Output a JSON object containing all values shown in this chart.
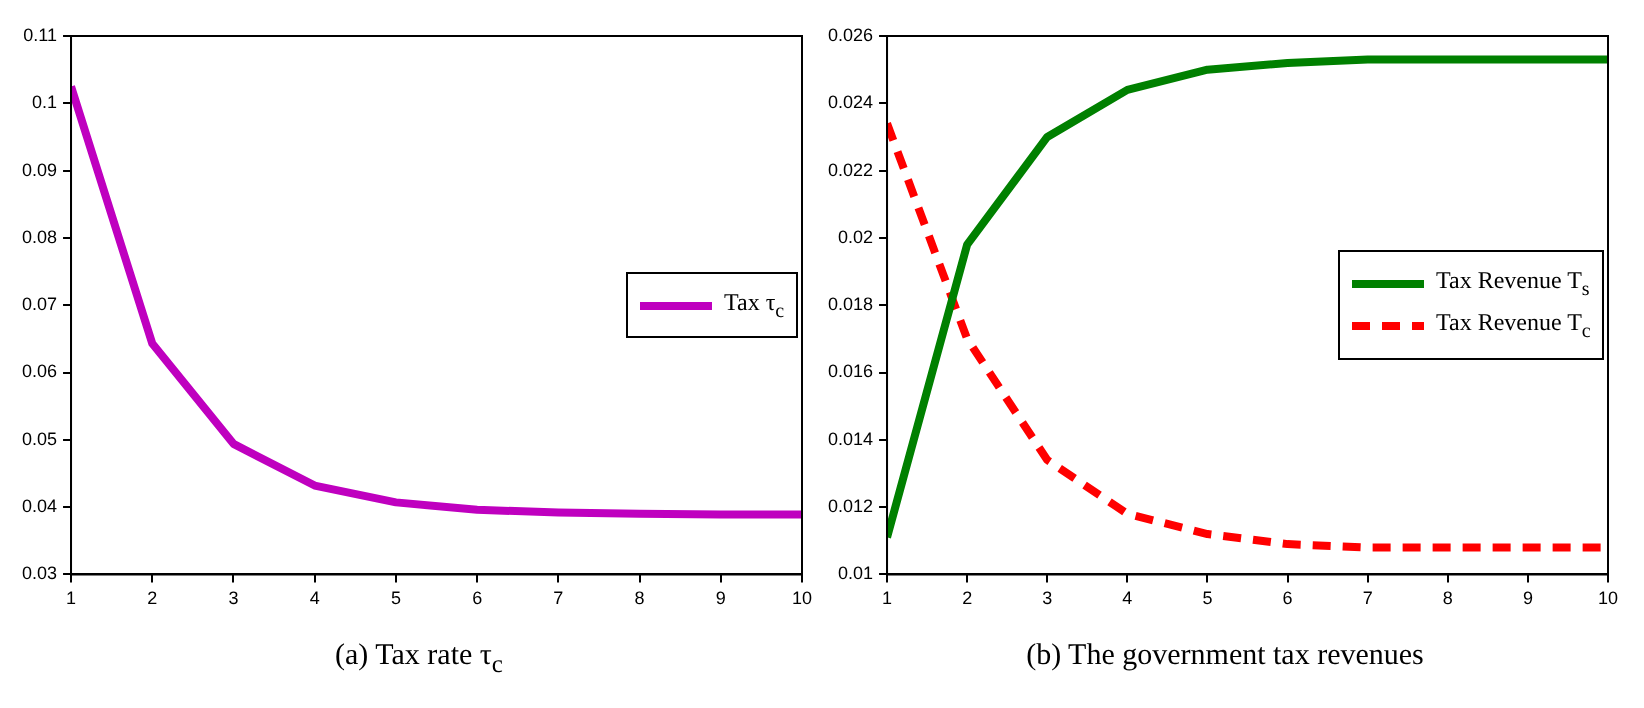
{
  "chart_data": [
    {
      "type": "line",
      "title": "(a)  Tax rate τ$_{c}$",
      "x": [
        1,
        2,
        3,
        4,
        5,
        6,
        7,
        8,
        9,
        10
      ],
      "xlim": [
        1,
        10
      ],
      "xticks": [
        1,
        2,
        3,
        4,
        5,
        6,
        7,
        8,
        9,
        10
      ],
      "ylim": [
        0.03,
        0.11
      ],
      "yticks": [
        0.03,
        0.04,
        0.05,
        0.06,
        0.07,
        0.08,
        0.09,
        0.1,
        0.11
      ],
      "grid": false,
      "legend": "right",
      "marker": "none",
      "series": [
        {
          "name": "Tax τ$_{c}$",
          "color": "#bf00bf",
          "line_style": "solid",
          "values": [
            0.1025,
            0.0643,
            0.0494,
            0.0432,
            0.0407,
            0.0396,
            0.0392,
            0.039,
            0.0389,
            0.0389
          ]
        }
      ]
    },
    {
      "type": "line",
      "title": "(b)  The government tax revenues",
      "x": [
        1,
        2,
        3,
        4,
        5,
        6,
        7,
        8,
        9,
        10
      ],
      "xlim": [
        1,
        10
      ],
      "xticks": [
        1,
        2,
        3,
        4,
        5,
        6,
        7,
        8,
        9,
        10
      ],
      "ylim": [
        0.01,
        0.026
      ],
      "yticks": [
        0.01,
        0.012,
        0.014,
        0.016,
        0.018,
        0.02,
        0.022,
        0.024,
        0.026
      ],
      "grid": false,
      "legend": "right",
      "marker": "none",
      "series": [
        {
          "name": "Tax Revenue T$_{s}$",
          "color": "#008000",
          "line_style": "solid",
          "values": [
            0.0111,
            0.0198,
            0.023,
            0.0244,
            0.025,
            0.0252,
            0.0253,
            0.0253,
            0.0253,
            0.0253
          ]
        },
        {
          "name": "Tax Revenue T$_{c}$",
          "color": "#ff0000",
          "line_style": "dashed",
          "values": [
            0.0234,
            0.017,
            0.0134,
            0.0118,
            0.0112,
            0.0109,
            0.0108,
            0.0108,
            0.0108,
            0.0108
          ]
        }
      ]
    }
  ]
}
